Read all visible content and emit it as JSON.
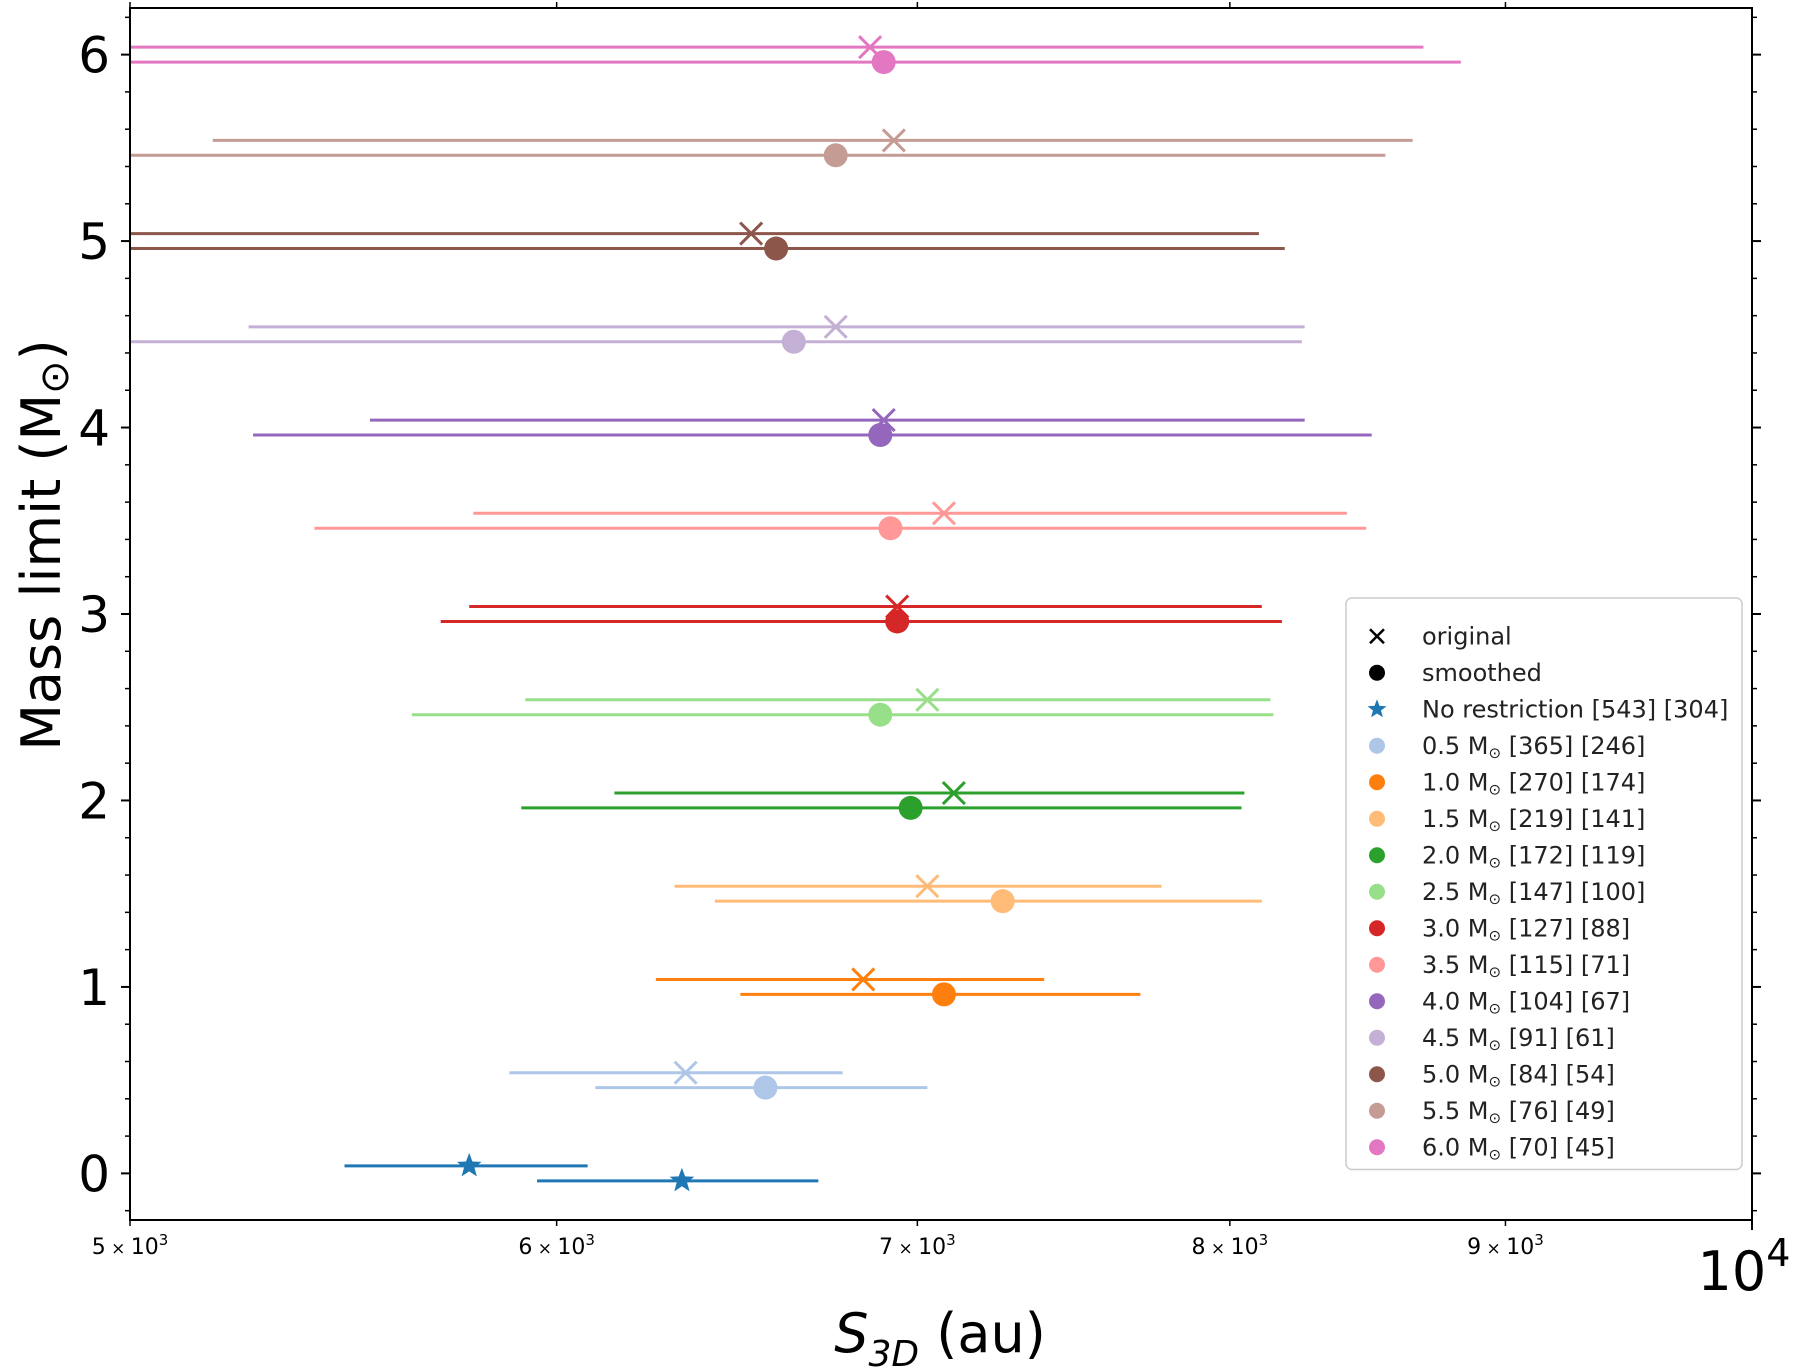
{
  "chart_data": {
    "type": "scatter",
    "title": "",
    "xlabel_main": "S",
    "xlabel_sub": "3D",
    "xlabel_unit": " (au)",
    "ylabel": "Mass limit (M",
    "ylabel_sun": "⊙",
    "ylabel_close": ")",
    "xscale": "log",
    "xlim": [
      5000,
      10000
    ],
    "ylim": [
      -0.25,
      6.25
    ],
    "x_tick_labels": [
      {
        "value": 5000,
        "mant": "5",
        "exp": "3"
      },
      {
        "value": 6000,
        "mant": "6",
        "exp": "3"
      },
      {
        "value": 7000,
        "mant": "7",
        "exp": "3"
      },
      {
        "value": 8000,
        "mant": "8",
        "exp": "3"
      },
      {
        "value": 9000,
        "mant": "9",
        "exp": "3"
      }
    ],
    "x_major_label": {
      "value": 10000,
      "base": "10",
      "exp": "4"
    },
    "y_ticks": [
      0,
      1,
      2,
      3,
      4,
      5,
      6
    ],
    "legend_markers": [
      {
        "label": "original",
        "marker": "x",
        "color": "#000000"
      },
      {
        "label": "smoothed",
        "marker": "o",
        "color": "#000000"
      }
    ],
    "series": [
      {
        "name": "No restriction",
        "label_pre": "No restriction",
        "label_post": "[543] [304]",
        "color": "#1f77b4",
        "marker": "*",
        "original": {
          "y": 0.04,
          "x": 5780,
          "xerr": [
            5480,
            6080
          ]
        },
        "smoothed": {
          "y": -0.04,
          "x": 6330,
          "xerr": [
            5950,
            6710
          ]
        }
      },
      {
        "name": "0.5",
        "label_pre": "0.5 M",
        "label_post": "[365] [246]",
        "color": "#aec7e8",
        "marker": "o",
        "original": {
          "y": 0.54,
          "x": 6340,
          "xerr": [
            5880,
            6780
          ]
        },
        "smoothed": {
          "y": 0.46,
          "x": 6560,
          "xerr": [
            6100,
            7030
          ]
        }
      },
      {
        "name": "1.0",
        "label_pre": "1.0 M",
        "label_post": "[270] [174]",
        "color": "#ff7f0e",
        "marker": "o",
        "original": {
          "y": 1.04,
          "x": 6840,
          "xerr": [
            6260,
            7390
          ]
        },
        "smoothed": {
          "y": 0.96,
          "x": 7080,
          "xerr": [
            6490,
            7700
          ]
        }
      },
      {
        "name": "1.5",
        "label_pre": "1.5 M",
        "label_post": "[219] [141]",
        "color": "#ffbb78",
        "marker": "o",
        "original": {
          "y": 1.54,
          "x": 7030,
          "xerr": [
            6310,
            7770
          ]
        },
        "smoothed": {
          "y": 1.46,
          "x": 7260,
          "xerr": [
            6420,
            8110
          ]
        }
      },
      {
        "name": "2.0",
        "label_pre": "2.0 M",
        "label_post": "[172] [119]",
        "color": "#2ca02c",
        "marker": "o",
        "original": {
          "y": 2.04,
          "x": 7110,
          "xerr": [
            6150,
            8050
          ]
        },
        "smoothed": {
          "y": 1.96,
          "x": 6980,
          "xerr": [
            5910,
            8040
          ]
        }
      },
      {
        "name": "2.5",
        "label_pre": "2.5 M",
        "label_post": "[147] [100]",
        "color": "#98df8a",
        "marker": "o",
        "original": {
          "y": 2.54,
          "x": 7030,
          "xerr": [
            5920,
            8140
          ]
        },
        "smoothed": {
          "y": 2.46,
          "x": 6890,
          "xerr": [
            5640,
            8150
          ]
        }
      },
      {
        "name": "3.0",
        "label_pre": "3.0 M",
        "label_post": "[127] [88]",
        "color": "#d62728",
        "marker": "o",
        "original": {
          "y": 3.04,
          "x": 6940,
          "xerr": [
            5780,
            8110
          ]
        },
        "smoothed": {
          "y": 2.96,
          "x": 6940,
          "xerr": [
            5710,
            8180
          ]
        }
      },
      {
        "name": "3.5",
        "label_pre": "3.5 M",
        "label_post": "[115] [71]",
        "color": "#ff9896",
        "marker": "o",
        "original": {
          "y": 3.54,
          "x": 7080,
          "xerr": [
            5790,
            8410
          ]
        },
        "smoothed": {
          "y": 3.46,
          "x": 6920,
          "xerr": [
            5410,
            8480
          ]
        }
      },
      {
        "name": "4.0",
        "label_pre": "4.0 M",
        "label_post": "[104] [67]",
        "color": "#9467bd",
        "marker": "o",
        "original": {
          "y": 4.04,
          "x": 6900,
          "xerr": [
            5540,
            8260
          ]
        },
        "smoothed": {
          "y": 3.96,
          "x": 6890,
          "xerr": [
            5270,
            8500
          ]
        }
      },
      {
        "name": "4.5",
        "label_pre": "4.5 M",
        "label_post": "[91] [61]",
        "color": "#c5b0d5",
        "marker": "o",
        "original": {
          "y": 4.54,
          "x": 6760,
          "xerr": [
            5260,
            8260
          ]
        },
        "smoothed": {
          "y": 4.46,
          "x": 6640,
          "xerr": [
            5000,
            8250
          ]
        }
      },
      {
        "name": "5.0",
        "label_pre": "5.0 M",
        "label_post": "[84] [54]",
        "color": "#8c564b",
        "marker": "o",
        "original": {
          "y": 5.04,
          "x": 6520,
          "xerr": [
            5000,
            8100
          ]
        },
        "smoothed": {
          "y": 4.96,
          "x": 6590,
          "xerr": [
            5000,
            8190
          ]
        }
      },
      {
        "name": "5.5",
        "label_pre": "5.5 M",
        "label_post": "[76] [49]",
        "color": "#c49c94",
        "marker": "o",
        "original": {
          "y": 5.54,
          "x": 6930,
          "xerr": [
            5180,
            8650
          ]
        },
        "smoothed": {
          "y": 5.46,
          "x": 6760,
          "xerr": [
            5000,
            8550
          ]
        }
      },
      {
        "name": "6.0",
        "label_pre": "6.0 M",
        "label_post": "[70] [45]",
        "color": "#e377c2",
        "marker": "o",
        "original": {
          "y": 6.04,
          "x": 6860,
          "xerr": [
            5000,
            8690
          ]
        },
        "smoothed": {
          "y": 5.96,
          "x": 6900,
          "xerr": [
            5000,
            8830
          ]
        }
      }
    ],
    "legend_sun": "⊙",
    "legend_placement": "lower-right"
  }
}
